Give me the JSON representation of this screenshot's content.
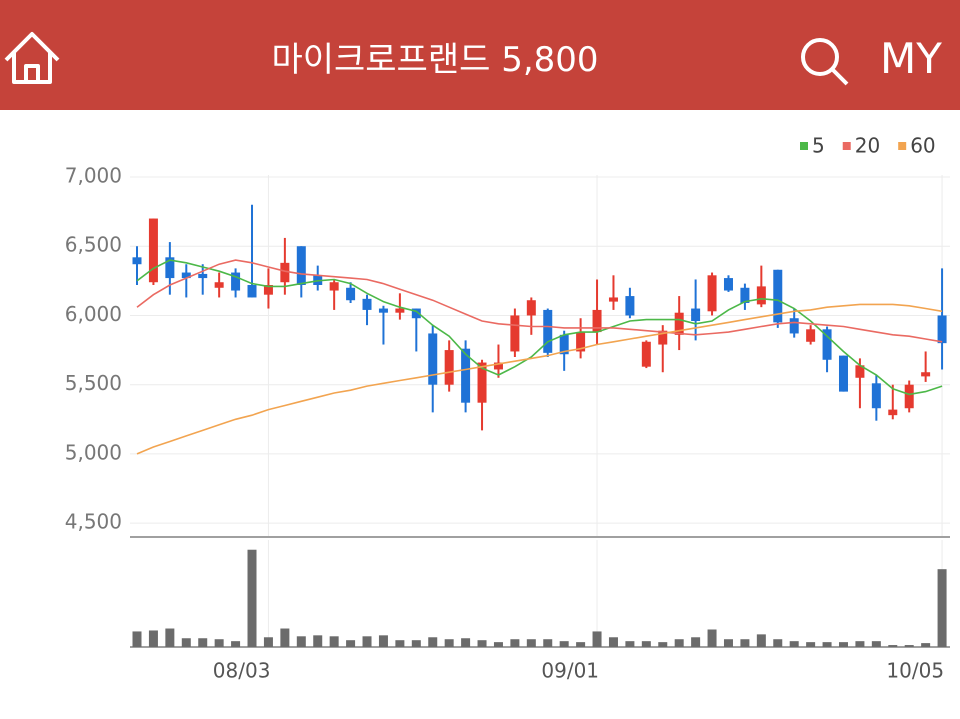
{
  "header": {
    "title": "마이크로프랜드 5,800",
    "my": "MY"
  },
  "chart_data": {
    "type": "candlestick",
    "categories": [
      null,
      null,
      null,
      null,
      null,
      null,
      null,
      null,
      "08/03",
      null,
      null,
      null,
      null,
      null,
      null,
      null,
      null,
      null,
      null,
      null,
      null,
      null,
      null,
      null,
      null,
      null,
      null,
      null,
      "09/01",
      null,
      null,
      null,
      null,
      null,
      null,
      null,
      null,
      null,
      null,
      null,
      null,
      null,
      null,
      null,
      null,
      null,
      null,
      null,
      null,
      "10/05"
    ],
    "open": [
      6420,
      6240,
      6420,
      6310,
      6300,
      6200,
      6310,
      6220,
      6150,
      6240,
      6500,
      6290,
      6180,
      6200,
      6120,
      6050,
      6020,
      6050,
      5870,
      5500,
      5760,
      5370,
      5610,
      5740,
      6000,
      6040,
      5860,
      5740,
      5880,
      6100,
      6140,
      5630,
      5790,
      5860,
      6050,
      6030,
      6270,
      6200,
      6080,
      6330,
      5980,
      5810,
      5900,
      5710,
      5550,
      5510,
      5280,
      5330,
      5560,
      6000
    ],
    "high": [
      6500,
      6700,
      6530,
      6370,
      6370,
      6310,
      6340,
      6800,
      6340,
      6560,
      6500,
      6360,
      6260,
      6240,
      6150,
      6070,
      6160,
      6050,
      5930,
      5820,
      5820,
      5680,
      5790,
      6050,
      6130,
      6050,
      5890,
      5980,
      6260,
      6290,
      6200,
      5820,
      5930,
      6140,
      6260,
      6310,
      6290,
      6230,
      6360,
      6330,
      6050,
      5930,
      5920,
      5710,
      5690,
      5570,
      5500,
      5530,
      5740,
      6340
    ],
    "low": [
      6220,
      6220,
      6150,
      6130,
      6150,
      6130,
      6130,
      6130,
      6050,
      6150,
      6130,
      6180,
      6040,
      6090,
      5930,
      5790,
      5970,
      5740,
      5300,
      5450,
      5300,
      5170,
      5550,
      5700,
      5860,
      5700,
      5600,
      5690,
      5790,
      6040,
      5980,
      5620,
      5590,
      5750,
      5820,
      6000,
      6170,
      6040,
      6060,
      5910,
      5840,
      5790,
      5590,
      5450,
      5330,
      5240,
      5250,
      5300,
      5520,
      5610
    ],
    "close": [
      6370,
      6700,
      6270,
      6270,
      6270,
      6240,
      6180,
      6130,
      6220,
      6380,
      6220,
      6220,
      6240,
      6110,
      6040,
      6020,
      6050,
      5980,
      5500,
      5750,
      5370,
      5660,
      5660,
      6000,
      6110,
      5730,
      5720,
      5880,
      6040,
      6130,
      6000,
      5810,
      5890,
      6020,
      5960,
      6290,
      6180,
      6090,
      6210,
      5950,
      5870,
      5900,
      5680,
      5450,
      5640,
      5330,
      5320,
      5500,
      5590,
      5800
    ],
    "up_color": "#e53a2f",
    "down_color": "#1f72d6",
    "ylim": [
      4400,
      7000
    ],
    "yticks": [
      {
        "value": 4500,
        "label": "4,500"
      },
      {
        "value": 5000,
        "label": "5,000"
      },
      {
        "value": 5500,
        "label": "5,500"
      },
      {
        "value": 6000,
        "label": "6,000"
      },
      {
        "value": 6500,
        "label": "6,500"
      },
      {
        "value": 7000,
        "label": "7,000"
      }
    ],
    "grid": true,
    "legend": "top-right",
    "moving_averages": [
      {
        "name": "5",
        "color": "#4cb848",
        "values": [
          6250,
          6340,
          6400,
          6380,
          6350,
          6320,
          6280,
          6230,
          6210,
          6210,
          6230,
          6250,
          6260,
          6230,
          6160,
          6100,
          6060,
          6030,
          5930,
          5850,
          5720,
          5620,
          5570,
          5630,
          5700,
          5810,
          5860,
          5880,
          5880,
          5920,
          5960,
          5970,
          5970,
          5970,
          5940,
          5960,
          6040,
          6100,
          6120,
          6110,
          6050,
          5960,
          5850,
          5740,
          5640,
          5570,
          5470,
          5430,
          5450,
          5490
        ]
      },
      {
        "name": "20",
        "color": "#ea6a62",
        "values": [
          6060,
          6150,
          6220,
          6270,
          6320,
          6370,
          6400,
          6380,
          6350,
          6320,
          6300,
          6290,
          6280,
          6270,
          6260,
          6230,
          6190,
          6150,
          6110,
          6060,
          6010,
          5960,
          5940,
          5930,
          5920,
          5920,
          5910,
          5910,
          5910,
          5910,
          5900,
          5890,
          5880,
          5870,
          5860,
          5870,
          5880,
          5900,
          5920,
          5940,
          5950,
          5940,
          5930,
          5920,
          5900,
          5880,
          5860,
          5850,
          5830,
          5810
        ]
      },
      {
        "name": "60",
        "color": "#f2a450",
        "values": [
          5000,
          5050,
          5090,
          5130,
          5170,
          5210,
          5250,
          5280,
          5320,
          5350,
          5380,
          5410,
          5440,
          5460,
          5490,
          5510,
          5530,
          5550,
          5570,
          5590,
          5610,
          5630,
          5650,
          5670,
          5690,
          5710,
          5740,
          5760,
          5790,
          5810,
          5830,
          5850,
          5870,
          5890,
          5910,
          5930,
          5950,
          5970,
          5990,
          6010,
          6030,
          6040,
          6060,
          6070,
          6080,
          6080,
          6080,
          6070,
          6050,
          6030
        ]
      }
    ],
    "volume": [
      16,
      17,
      19,
      9,
      9,
      8,
      6,
      100,
      10,
      19,
      11,
      12,
      11,
      7,
      11,
      12,
      7,
      7,
      10,
      8,
      9,
      7,
      5,
      8,
      8,
      8,
      6,
      5,
      16,
      10,
      6,
      6,
      5,
      8,
      10,
      18,
      8,
      8,
      13,
      8,
      6,
      5,
      5,
      5,
      6,
      6,
      2,
      2,
      4,
      80
    ],
    "volume_color": "#6b6b6b",
    "volume_lim": [
      0,
      110
    ]
  }
}
